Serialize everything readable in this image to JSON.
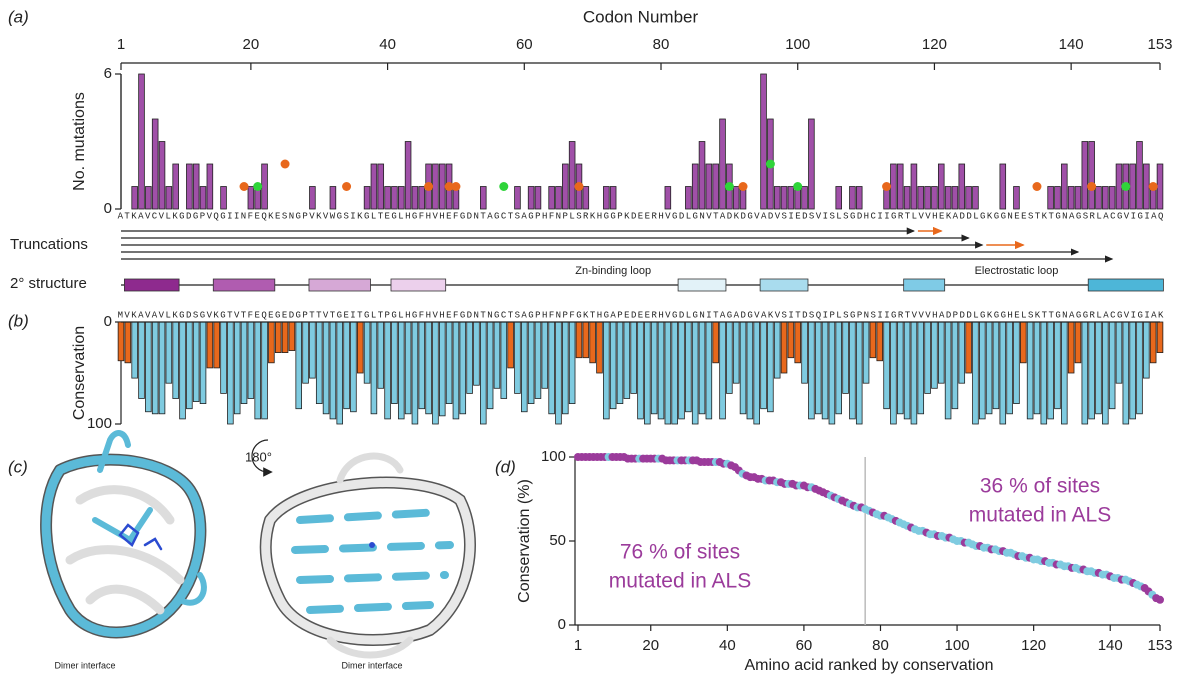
{
  "chart_data": [
    {
      "type": "bar",
      "panel_label": "(a)",
      "x_label": "Codon Number",
      "y_label": "No. mutations",
      "x": [
        1,
        2,
        3,
        4,
        5,
        6,
        7,
        8,
        9,
        10,
        11,
        12,
        13,
        14,
        15,
        16,
        17,
        18,
        19,
        20,
        21,
        22,
        23,
        24,
        25,
        26,
        27,
        28,
        29,
        30,
        31,
        32,
        33,
        34,
        35,
        36,
        37,
        38,
        39,
        40,
        41,
        42,
        43,
        44,
        45,
        46,
        47,
        48,
        49,
        50,
        51,
        52,
        53,
        54,
        55,
        56,
        57,
        58,
        59,
        60,
        61,
        62,
        63,
        64,
        65,
        66,
        67,
        68,
        69,
        70,
        71,
        72,
        73,
        74,
        75,
        76,
        77,
        78,
        79,
        80,
        81,
        82,
        83,
        84,
        85,
        86,
        87,
        88,
        89,
        90,
        91,
        92,
        93,
        94,
        95,
        96,
        97,
        98,
        99,
        100,
        101,
        102,
        103,
        104,
        105,
        106,
        107,
        108,
        109,
        110,
        111,
        112,
        113,
        114,
        115,
        116,
        117,
        118,
        119,
        120,
        121,
        122,
        123,
        124,
        125,
        126,
        127,
        128,
        129,
        130,
        131,
        132,
        133,
        134,
        135,
        136,
        137,
        138,
        139,
        140,
        141,
        142,
        143,
        144,
        145,
        146,
        147,
        148,
        149,
        150,
        151,
        152,
        153
      ],
      "values": [
        0,
        0,
        1,
        6,
        1,
        4,
        3,
        1,
        2,
        0,
        2,
        2,
        1,
        2,
        0,
        1,
        0,
        0,
        0,
        1,
        1,
        2,
        0,
        0,
        0,
        0,
        0,
        0,
        1,
        0,
        0,
        1,
        0,
        0,
        0,
        0,
        1,
        2,
        2,
        1,
        1,
        1,
        3,
        1,
        1,
        2,
        2,
        2,
        2,
        1,
        0,
        0,
        0,
        1,
        0,
        0,
        0,
        0,
        1,
        0,
        1,
        1,
        0,
        1,
        1,
        2,
        3,
        2,
        1,
        0,
        0,
        1,
        1,
        0,
        0,
        0,
        0,
        0,
        0,
        0,
        1,
        0,
        0,
        1,
        2,
        3,
        2,
        2,
        4,
        2,
        1,
        1,
        0,
        0,
        6,
        4,
        1,
        1,
        1,
        1,
        1,
        4,
        0,
        0,
        0,
        1,
        0,
        1,
        1,
        0,
        0,
        0,
        1,
        2,
        2,
        1,
        2,
        1,
        1,
        1,
        2,
        1,
        1,
        2,
        1,
        1,
        0,
        0,
        0,
        2,
        0,
        1,
        0,
        0,
        0,
        0,
        1,
        1,
        2,
        1,
        1,
        3,
        3,
        1,
        1,
        1,
        2,
        2,
        2,
        3,
        2,
        1,
        2
      ],
      "color": "#a050a8",
      "xlim": [
        1,
        153
      ],
      "xticks": [
        1,
        20,
        40,
        60,
        80,
        100,
        120,
        140,
        153
      ],
      "ylim": [
        0,
        6
      ],
      "yticks": [
        0,
        6
      ],
      "markers": [
        {
          "color": "#e8681c",
          "x": [
            19,
            25,
            34,
            46,
            49,
            50,
            68,
            92,
            113,
            135,
            143,
            152
          ],
          "values": [
            1,
            2,
            1,
            1,
            1,
            1,
            1,
            1,
            1,
            1,
            1,
            1
          ]
        },
        {
          "color": "#2fd43a",
          "x": [
            21,
            57,
            90,
            96,
            100,
            148
          ],
          "values": [
            1,
            1,
            1,
            2,
            1,
            1
          ]
        }
      ],
      "sequence": "ATKAVCVLKGDGPVQGIINFEQKESNGPVKVWGSIKGLTEGLHGFHVHEFGDNTAGCTSAGPHFNPLSRKHGGPKDEERHVGDLGNVTADKDGVADVSIEDSVISLSGDHCIIGRTLVVHEKADDLGKGGNEESTKTGNAGSRLACGVIGIAQ",
      "truncations": {
        "label": "Truncations",
        "ends": [
          117,
          125,
          127,
          141,
          146
        ],
        "color": "#222",
        "extensions": [
          {
            "from": 117,
            "to": 121
          },
          {
            "from": 127,
            "to": 133
          }
        ],
        "extension_color": "#e8681c"
      },
      "secondary_structure": {
        "label": "2° structure",
        "elements": [
          {
            "start": 2,
            "end": 9,
            "color": "#8e2a8e"
          },
          {
            "start": 15,
            "end": 23,
            "color": "#b05cb0"
          },
          {
            "start": 29,
            "end": 37,
            "color": "#d6a8d6"
          },
          {
            "start": 41,
            "end": 48,
            "color": "#ecd0ec"
          },
          {
            "start": 83,
            "end": 89,
            "color": "#e2f2f8"
          },
          {
            "start": 95,
            "end": 101,
            "color": "#a9dcee"
          },
          {
            "start": 116,
            "end": 121,
            "color": "#7fcbe6"
          },
          {
            "start": 143,
            "end": 153,
            "color": "#4db6d8"
          }
        ],
        "loops": [
          {
            "label": "Zn-binding loop",
            "at": 73
          },
          {
            "label": "Electrostatic loop",
            "at": 132
          }
        ]
      }
    },
    {
      "type": "bar",
      "panel_label": "(b)",
      "y_label": "Conservation",
      "inverted": true,
      "x": [
        1,
        2,
        3,
        4,
        5,
        6,
        7,
        8,
        9,
        10,
        11,
        12,
        13,
        14,
        15,
        16,
        17,
        18,
        19,
        20,
        21,
        22,
        23,
        24,
        25,
        26,
        27,
        28,
        29,
        30,
        31,
        32,
        33,
        34,
        35,
        36,
        37,
        38,
        39,
        40,
        41,
        42,
        43,
        44,
        45,
        46,
        47,
        48,
        49,
        50,
        51,
        52,
        53,
        54,
        55,
        56,
        57,
        58,
        59,
        60,
        61,
        62,
        63,
        64,
        65,
        66,
        67,
        68,
        69,
        70,
        71,
        72,
        73,
        74,
        75,
        76,
        77,
        78,
        79,
        80,
        81,
        82,
        83,
        84,
        85,
        86,
        87,
        88,
        89,
        90,
        91,
        92,
        93,
        94,
        95,
        96,
        97,
        98,
        99,
        100,
        101,
        102,
        103,
        104,
        105,
        106,
        107,
        108,
        109,
        110,
        111,
        112,
        113,
        114,
        115,
        116,
        117,
        118,
        119,
        120,
        121,
        122,
        123,
        124,
        125,
        126,
        127,
        128,
        129,
        130,
        131,
        132,
        133,
        134,
        135,
        136,
        137,
        138,
        139,
        140,
        141,
        142,
        143,
        144,
        145,
        146,
        147,
        148,
        149,
        150,
        151,
        152,
        153
      ],
      "values": [
        38,
        40,
        55,
        75,
        88,
        90,
        90,
        60,
        75,
        95,
        85,
        78,
        80,
        45,
        45,
        70,
        100,
        90,
        80,
        75,
        95,
        95,
        40,
        30,
        30,
        28,
        85,
        60,
        55,
        80,
        90,
        95,
        100,
        85,
        88,
        50,
        60,
        90,
        65,
        95,
        80,
        95,
        90,
        100,
        85,
        90,
        100,
        92,
        80,
        95,
        90,
        70,
        62,
        100,
        85,
        65,
        75,
        45,
        70,
        88,
        80,
        75,
        65,
        90,
        100,
        90,
        80,
        35,
        35,
        40,
        50,
        95,
        85,
        80,
        75,
        70,
        95,
        100,
        90,
        95,
        100,
        100,
        95,
        88,
        100,
        90,
        95,
        40,
        95,
        70,
        60,
        90,
        95,
        100,
        85,
        88,
        55,
        50,
        35,
        40,
        60,
        95,
        90,
        95,
        100,
        90,
        70,
        95,
        100,
        60,
        35,
        38,
        85,
        100,
        90,
        95,
        100,
        90,
        70,
        65,
        60,
        95,
        85,
        60,
        50,
        100,
        95,
        90,
        85,
        100,
        90,
        80,
        40,
        95,
        90,
        100,
        95,
        85,
        100,
        50,
        40,
        100,
        95,
        90,
        100,
        85,
        60,
        100,
        95,
        90,
        55,
        40,
        30
      ],
      "colors": [
        "#7fcbe0",
        "#e8681c"
      ],
      "color_index": [
        1,
        1,
        0,
        0,
        0,
        0,
        0,
        0,
        0,
        0,
        0,
        0,
        0,
        1,
        1,
        0,
        0,
        0,
        0,
        0,
        0,
        0,
        1,
        1,
        1,
        1,
        0,
        0,
        0,
        0,
        0,
        0,
        0,
        0,
        0,
        1,
        0,
        0,
        0,
        0,
        0,
        0,
        0,
        0,
        0,
        0,
        0,
        0,
        0,
        0,
        0,
        0,
        0,
        0,
        0,
        0,
        0,
        1,
        0,
        0,
        0,
        0,
        0,
        0,
        0,
        0,
        0,
        1,
        1,
        1,
        1,
        0,
        0,
        0,
        0,
        0,
        0,
        0,
        0,
        0,
        0,
        0,
        0,
        0,
        0,
        0,
        0,
        1,
        0,
        0,
        0,
        0,
        0,
        0,
        0,
        0,
        0,
        1,
        1,
        1,
        0,
        0,
        0,
        0,
        0,
        0,
        0,
        0,
        0,
        0,
        1,
        1,
        0,
        0,
        0,
        0,
        0,
        0,
        0,
        0,
        0,
        0,
        0,
        0,
        1,
        0,
        0,
        0,
        0,
        0,
        0,
        0,
        1,
        0,
        0,
        0,
        0,
        0,
        0,
        1,
        1,
        0,
        0,
        0,
        0,
        0,
        0,
        0,
        0,
        0,
        0,
        1,
        1
      ],
      "xlim": [
        1,
        153
      ],
      "ylim": [
        0,
        100
      ],
      "yticks": [
        0,
        100
      ],
      "sequence": "MVKAVAVLKGDSGVKGTVTFEQEGEDGPTTVTGEITGLTPGLHGFHVHEFGDNTNGCTSAGPHFNPFGKTHGAPEDEERHVGDLGNITAGADGVAKVSITDSQIPLSGPNSIIGRTVVVHADPDDLGKGGHELSKTTGNAGGRLACGVIGIAK"
    },
    {
      "type": "scatter",
      "panel_label": "(d)",
      "x_label": "Amino acid ranked by conservation",
      "y_label": "Conservation (%)",
      "x": [
        1,
        2,
        3,
        4,
        5,
        6,
        7,
        8,
        9,
        10,
        11,
        12,
        13,
        14,
        15,
        16,
        17,
        18,
        19,
        20,
        21,
        22,
        23,
        24,
        25,
        26,
        27,
        28,
        29,
        30,
        31,
        32,
        33,
        34,
        35,
        36,
        37,
        38,
        39,
        40,
        41,
        42,
        43,
        44,
        45,
        46,
        47,
        48,
        49,
        50,
        51,
        52,
        53,
        54,
        55,
        56,
        57,
        58,
        59,
        60,
        61,
        62,
        63,
        64,
        65,
        66,
        67,
        68,
        69,
        70,
        71,
        72,
        73,
        74,
        75,
        76,
        77,
        78,
        79,
        80,
        81,
        82,
        83,
        84,
        85,
        86,
        87,
        88,
        89,
        90,
        91,
        92,
        93,
        94,
        95,
        96,
        97,
        98,
        99,
        100,
        101,
        102,
        103,
        104,
        105,
        106,
        107,
        108,
        109,
        110,
        111,
        112,
        113,
        114,
        115,
        116,
        117,
        118,
        119,
        120,
        121,
        122,
        123,
        124,
        125,
        126,
        127,
        128,
        129,
        130,
        131,
        132,
        133,
        134,
        135,
        136,
        137,
        138,
        139,
        140,
        141,
        142,
        143,
        144,
        145,
        146,
        147,
        148,
        149,
        150,
        151,
        152,
        153
      ],
      "values": [
        100,
        100,
        100,
        100,
        100,
        100,
        100,
        100,
        100,
        100,
        100,
        100,
        100,
        99,
        99,
        99,
        99,
        99,
        99,
        99,
        99,
        99,
        99,
        98,
        98,
        98,
        98,
        98,
        98,
        98,
        98,
        98,
        97,
        97,
        97,
        97,
        97,
        97,
        96,
        96,
        95,
        94,
        92,
        90,
        89,
        88,
        88,
        87,
        87,
        86,
        86,
        86,
        85,
        85,
        84,
        84,
        84,
        83,
        83,
        83,
        82,
        82,
        81,
        80,
        79,
        78,
        77,
        76,
        75,
        74,
        73,
        72,
        71,
        70,
        70,
        69,
        68,
        67,
        66,
        65,
        65,
        64,
        63,
        62,
        61,
        60,
        59,
        58,
        57,
        56,
        56,
        55,
        54,
        54,
        53,
        53,
        52,
        52,
        51,
        50,
        50,
        49,
        49,
        48,
        47,
        47,
        46,
        46,
        45,
        45,
        44,
        44,
        43,
        43,
        42,
        41,
        41,
        40,
        40,
        39,
        39,
        38,
        38,
        37,
        37,
        36,
        36,
        35,
        35,
        34,
        34,
        33,
        33,
        32,
        32,
        31,
        31,
        30,
        30,
        29,
        28,
        28,
        27,
        27,
        26,
        25,
        24,
        23,
        22,
        20,
        18,
        16,
        15
      ],
      "colors": [
        "#9b3b9b",
        "#7fcbe0"
      ],
      "color_index": [
        0,
        0,
        0,
        0,
        0,
        0,
        0,
        0,
        1,
        0,
        0,
        0,
        0,
        0,
        0,
        0,
        1,
        0,
        0,
        0,
        0,
        1,
        0,
        0,
        0,
        0,
        1,
        0,
        0,
        1,
        0,
        0,
        0,
        0,
        0,
        0,
        1,
        0,
        0,
        1,
        0,
        0,
        0,
        1,
        0,
        0,
        0,
        0,
        0,
        1,
        0,
        0,
        1,
        0,
        0,
        1,
        0,
        0,
        1,
        0,
        0,
        1,
        0,
        0,
        0,
        0,
        1,
        0,
        1,
        0,
        0,
        1,
        0,
        1,
        0,
        1,
        1,
        0,
        1,
        1,
        0,
        1,
        1,
        0,
        1,
        1,
        1,
        0,
        1,
        1,
        1,
        0,
        1,
        1,
        0,
        1,
        1,
        0,
        1,
        1,
        1,
        0,
        1,
        1,
        1,
        0,
        1,
        1,
        0,
        1,
        1,
        0,
        1,
        1,
        1,
        0,
        1,
        1,
        0,
        1,
        1,
        1,
        0,
        1,
        1,
        0,
        1,
        1,
        1,
        0,
        1,
        1,
        0,
        1,
        1,
        1,
        0,
        1,
        1,
        0,
        1,
        1,
        0,
        1,
        1,
        0,
        1,
        1,
        0,
        0,
        1,
        0,
        0
      ],
      "xlim": [
        1,
        153
      ],
      "xticks": [
        1,
        20,
        40,
        60,
        80,
        100,
        120,
        140,
        153
      ],
      "ylim": [
        0,
        100
      ],
      "yticks": [
        0,
        50,
        100
      ],
      "vline": 76,
      "annotations": [
        {
          "lines": [
            "76 % of sites",
            "mutated in ALS"
          ]
        },
        {
          "lines": [
            "36 % of sites",
            "mutated in ALS"
          ]
        }
      ]
    }
  ],
  "panel_c": {
    "label": "(c)",
    "rotation": "180°",
    "captions": [
      "Dimer interface",
      "Dimer interface"
    ]
  }
}
